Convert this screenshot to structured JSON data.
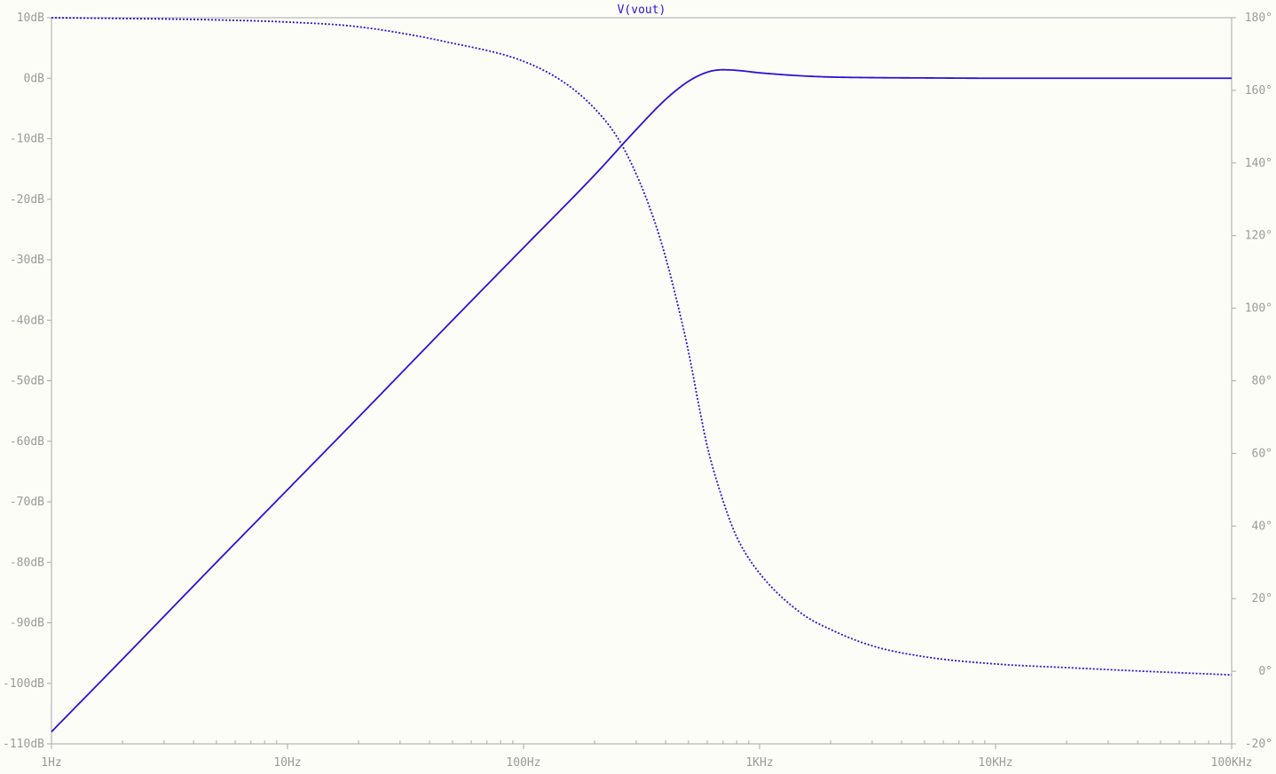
{
  "chart_data": {
    "type": "line",
    "title": "V(vout)",
    "x_scale": "log",
    "xlim": [
      1,
      100000
    ],
    "x_ticks": [
      {
        "value": 1,
        "label": "1Hz"
      },
      {
        "value": 10,
        "label": "10Hz"
      },
      {
        "value": 100,
        "label": "100Hz"
      },
      {
        "value": 1000,
        "label": "1KHz"
      },
      {
        "value": 10000,
        "label": "10KHz"
      },
      {
        "value": 100000,
        "label": "100KHz"
      }
    ],
    "y_left": {
      "unit": "dB",
      "ylim": [
        -110,
        10
      ],
      "ticks": [
        {
          "value": 10,
          "label": "10dB"
        },
        {
          "value": 0,
          "label": "0dB"
        },
        {
          "value": -10,
          "label": "-10dB"
        },
        {
          "value": -20,
          "label": "-20dB"
        },
        {
          "value": -30,
          "label": "-30dB"
        },
        {
          "value": -40,
          "label": "-40dB"
        },
        {
          "value": -50,
          "label": "-50dB"
        },
        {
          "value": -60,
          "label": "-60dB"
        },
        {
          "value": -70,
          "label": "-70dB"
        },
        {
          "value": -80,
          "label": "-80dB"
        },
        {
          "value": -90,
          "label": "-90dB"
        },
        {
          "value": -100,
          "label": "-100dB"
        },
        {
          "value": -110,
          "label": "-110dB"
        }
      ]
    },
    "y_right": {
      "unit": "°",
      "ylim": [
        -20,
        180
      ],
      "ticks": [
        {
          "value": 180,
          "label": "180°"
        },
        {
          "value": 160,
          "label": "160°"
        },
        {
          "value": 140,
          "label": "140°"
        },
        {
          "value": 120,
          "label": "120°"
        },
        {
          "value": 100,
          "label": "100°"
        },
        {
          "value": 80,
          "label": "80°"
        },
        {
          "value": 60,
          "label": "60°"
        },
        {
          "value": 40,
          "label": "40°"
        },
        {
          "value": 20,
          "label": "20°"
        },
        {
          "value": 0,
          "label": "0°"
        },
        {
          "value": -20,
          "label": "-20°"
        }
      ]
    },
    "series": [
      {
        "name": "V(vout)",
        "axis": "left",
        "style": "solid",
        "color": "#2b12d6",
        "x": [
          1,
          2,
          5,
          10,
          20,
          50,
          100,
          200,
          300,
          400,
          500,
          600,
          700,
          800,
          1000,
          1500,
          2000,
          3000,
          5000,
          10000,
          20000,
          50000,
          100000
        ],
        "y": [
          -108,
          -96,
          -80,
          -68,
          -56,
          -40,
          -28,
          -16,
          -8.5,
          -3.5,
          -0.5,
          1.0,
          1.4,
          1.3,
          0.9,
          0.4,
          0.2,
          0.1,
          0.05,
          0.0,
          0.0,
          0.0,
          0.0
        ]
      },
      {
        "axis": "right",
        "style": "dotted",
        "color": "#2b12d6",
        "x": [
          1,
          2,
          5,
          10,
          20,
          50,
          100,
          150,
          200,
          250,
          300,
          350,
          400,
          450,
          500,
          550,
          600,
          700,
          800,
          1000,
          1500,
          2000,
          3000,
          5000,
          10000,
          20000,
          50000,
          100000
        ],
        "y": [
          180,
          179.8,
          179.4,
          178.8,
          177.5,
          173,
          168,
          162,
          155,
          147,
          137,
          126,
          114,
          101,
          88,
          74,
          62,
          47,
          37,
          27,
          16,
          11.5,
          7,
          4,
          2,
          1,
          -0.2,
          -1
        ]
      }
    ],
    "grid": false
  }
}
